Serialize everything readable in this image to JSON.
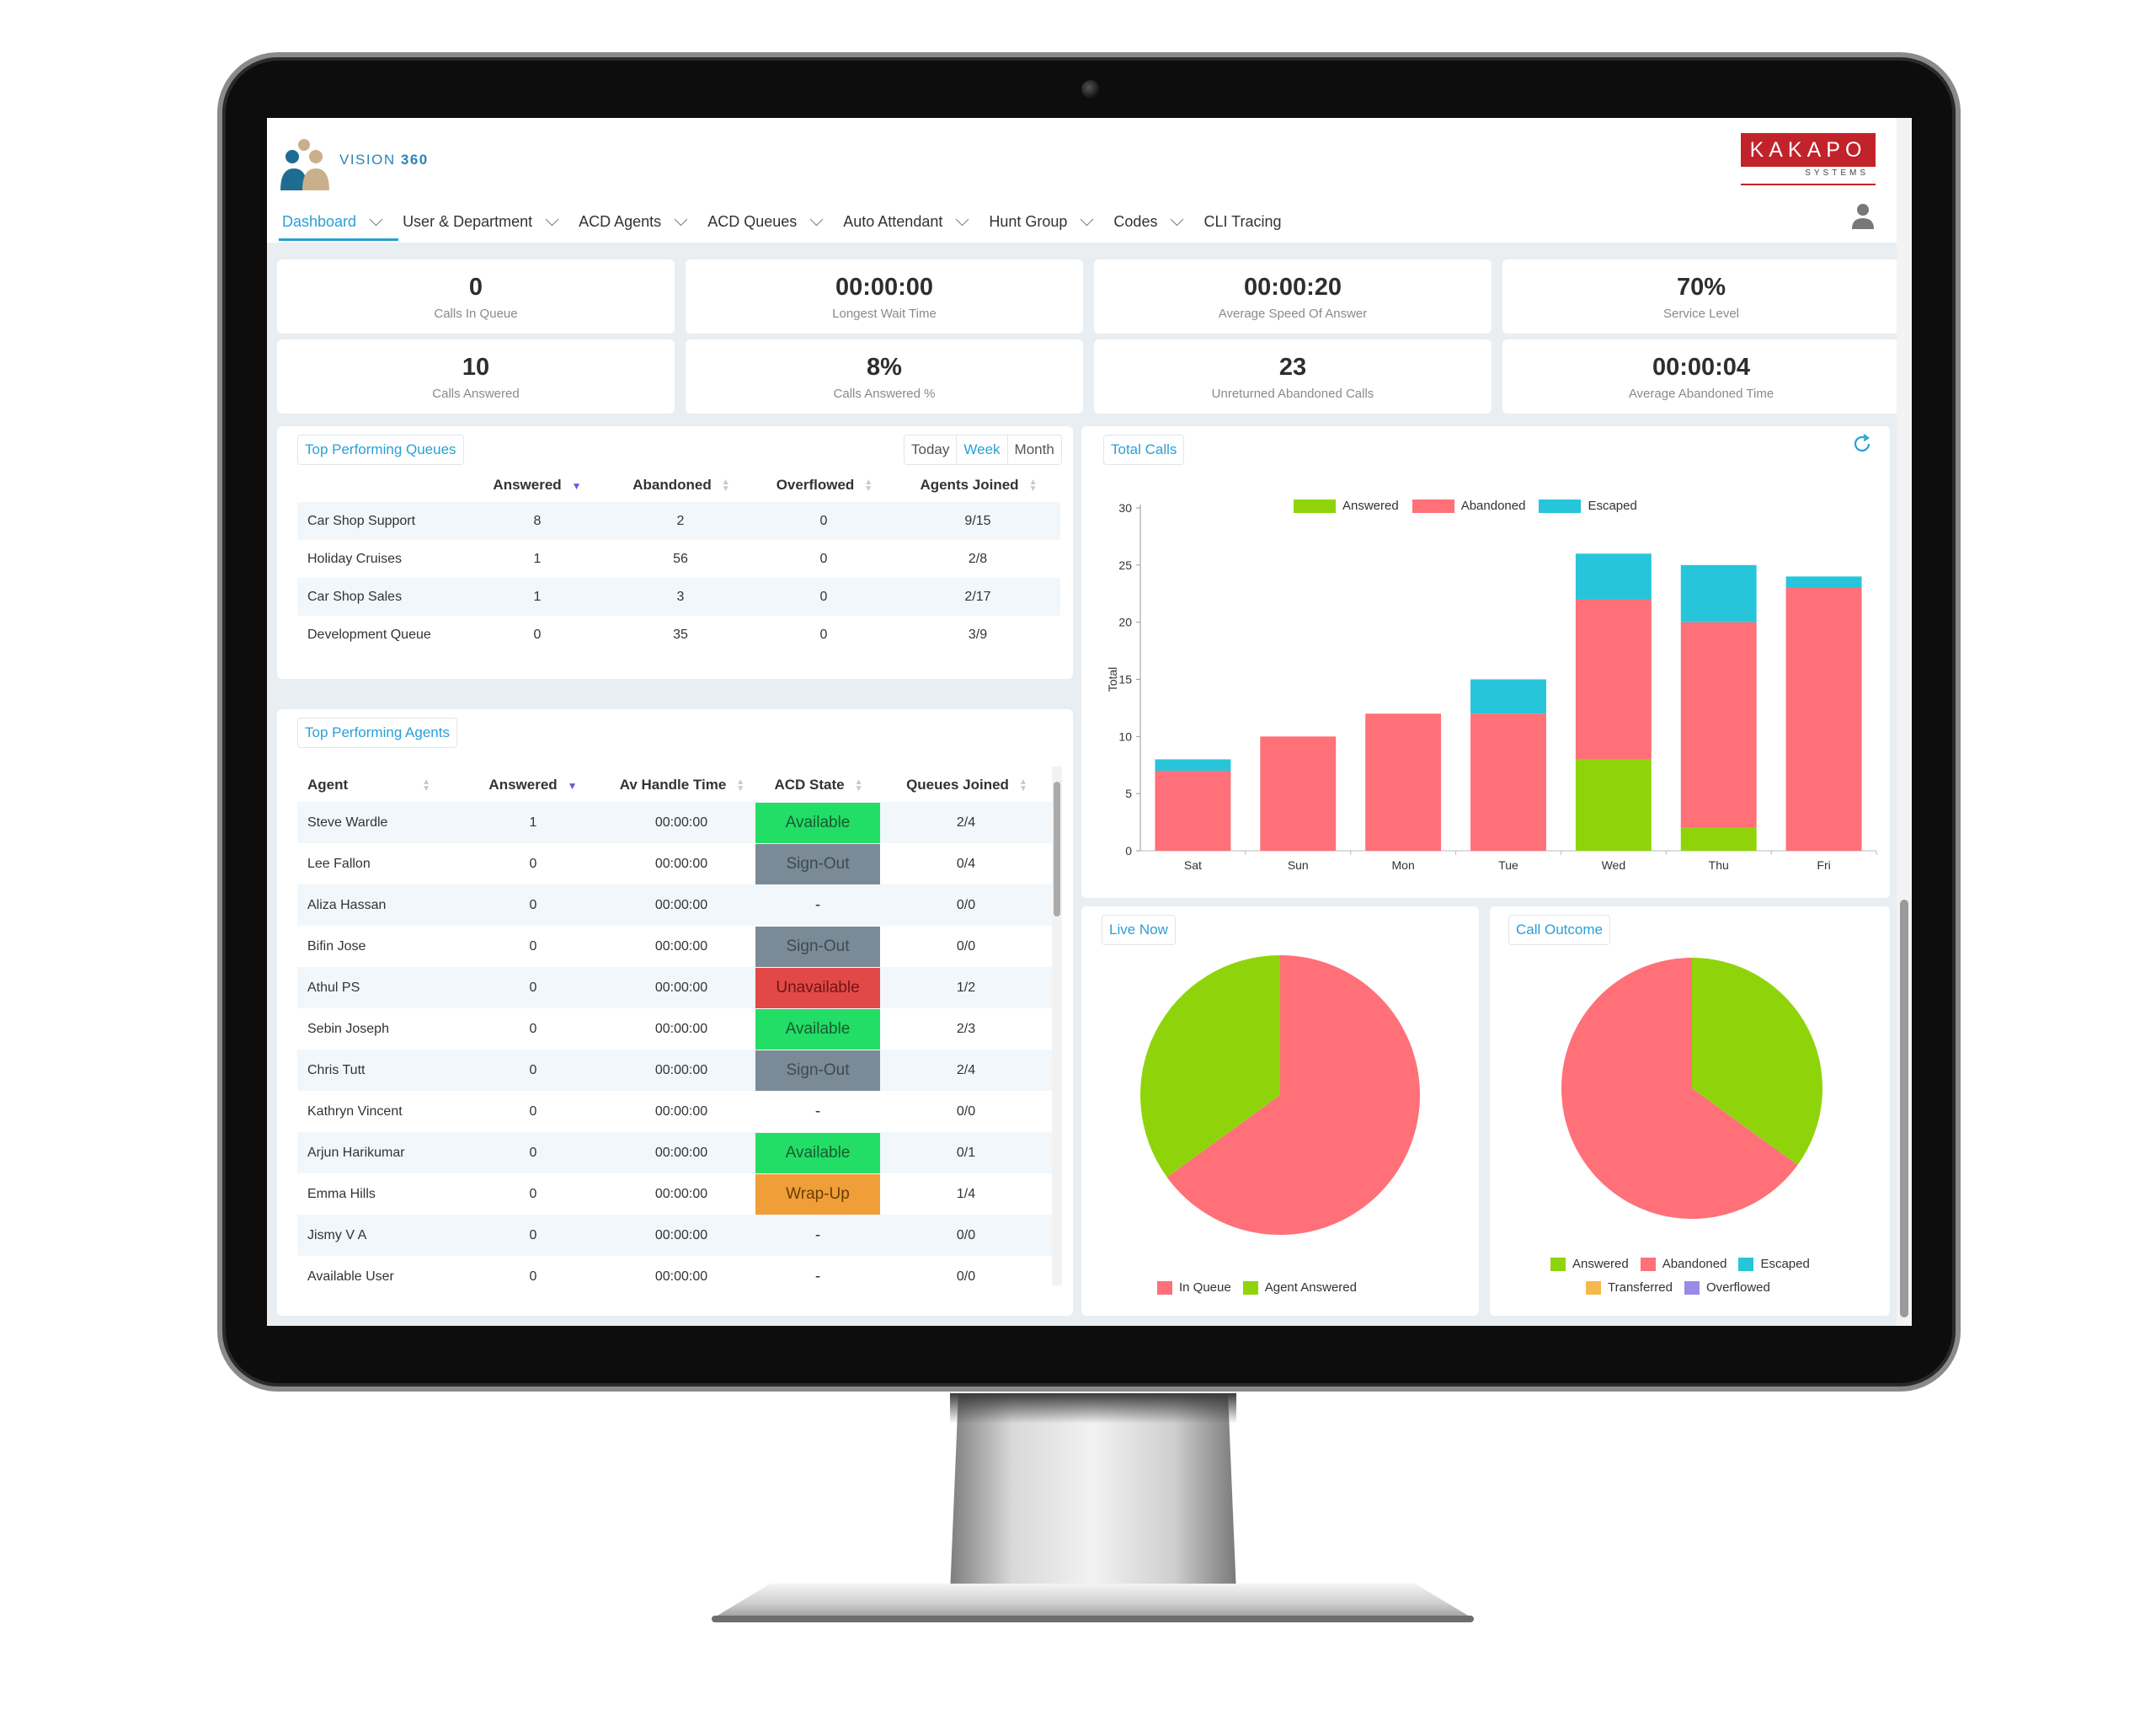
{
  "app": {
    "name": "VISION",
    "name_suffix": "360",
    "brand": "KAKAPO",
    "brand_sub": "SYSTEMS"
  },
  "nav": {
    "items": [
      {
        "label": "Dashboard",
        "has_menu": true,
        "active": true
      },
      {
        "label": "User & Department",
        "has_menu": true
      },
      {
        "label": "ACD Agents",
        "has_menu": true
      },
      {
        "label": "ACD Queues",
        "has_menu": true
      },
      {
        "label": "Auto Attendant",
        "has_menu": true
      },
      {
        "label": "Hunt Group",
        "has_menu": true
      },
      {
        "label": "Codes",
        "has_menu": true
      },
      {
        "label": "CLI Tracing",
        "has_menu": false
      }
    ]
  },
  "kpis": [
    {
      "value": "0",
      "label": "Calls In Queue"
    },
    {
      "value": "00:00:00",
      "label": "Longest Wait Time"
    },
    {
      "value": "00:00:20",
      "label": "Average Speed Of Answer"
    },
    {
      "value": "70%",
      "label": "Service Level"
    },
    {
      "value": "10",
      "label": "Calls Answered"
    },
    {
      "value": "8%",
      "label": "Calls Answered %"
    },
    {
      "value": "23",
      "label": "Unreturned Abandoned Calls"
    },
    {
      "value": "00:00:04",
      "label": "Average Abandoned Time"
    }
  ],
  "queues": {
    "title": "Top Performing Queues",
    "range": {
      "options": [
        "Today",
        "Week",
        "Month"
      ],
      "selected": "Week"
    },
    "columns": [
      "Answered",
      "Abandoned",
      "Overflowed",
      "Agents Joined"
    ],
    "rows": [
      {
        "name": "Car Shop Support",
        "answered": "8",
        "abandoned": "2",
        "overflowed": "0",
        "agents": "9/15"
      },
      {
        "name": "Holiday Cruises",
        "answered": "1",
        "abandoned": "56",
        "overflowed": "0",
        "agents": "2/8"
      },
      {
        "name": "Car Shop Sales",
        "answered": "1",
        "abandoned": "3",
        "overflowed": "0",
        "agents": "2/17"
      },
      {
        "name": "Development Queue",
        "answered": "0",
        "abandoned": "35",
        "overflowed": "0",
        "agents": "3/9"
      }
    ]
  },
  "agents": {
    "title": "Top Performing Agents",
    "columns": [
      "Agent",
      "Answered",
      "Av Handle Time",
      "ACD State",
      "Queues Joined"
    ],
    "rows": [
      {
        "name": "Steve Wardle",
        "answered": "1",
        "time": "00:00:00",
        "state": "Available",
        "state_kind": "available",
        "queues": "2/4"
      },
      {
        "name": "Lee Fallon",
        "answered": "0",
        "time": "00:00:00",
        "state": "Sign-Out",
        "state_kind": "signout",
        "queues": "0/4"
      },
      {
        "name": "Aliza Hassan",
        "answered": "0",
        "time": "00:00:00",
        "state": "-",
        "state_kind": "none",
        "queues": "0/0"
      },
      {
        "name": "Bifin Jose",
        "answered": "0",
        "time": "00:00:00",
        "state": "Sign-Out",
        "state_kind": "signout",
        "queues": "0/0"
      },
      {
        "name": "Athul PS",
        "answered": "0",
        "time": "00:00:00",
        "state": "Unavailable",
        "state_kind": "unavailable",
        "queues": "1/2"
      },
      {
        "name": "Sebin Joseph",
        "answered": "0",
        "time": "00:00:00",
        "state": "Available",
        "state_kind": "available",
        "queues": "2/3"
      },
      {
        "name": "Chris Tutt",
        "answered": "0",
        "time": "00:00:00",
        "state": "Sign-Out",
        "state_kind": "signout",
        "queues": "2/4"
      },
      {
        "name": "Kathryn Vincent",
        "answered": "0",
        "time": "00:00:00",
        "state": "-",
        "state_kind": "none",
        "queues": "0/0"
      },
      {
        "name": "Arjun Harikumar",
        "answered": "0",
        "time": "00:00:00",
        "state": "Available",
        "state_kind": "available",
        "queues": "0/1"
      },
      {
        "name": "Emma Hills",
        "answered": "0",
        "time": "00:00:00",
        "state": "Wrap-Up",
        "state_kind": "wrapup",
        "queues": "1/4"
      },
      {
        "name": "Jismy V A",
        "answered": "0",
        "time": "00:00:00",
        "state": "-",
        "state_kind": "none",
        "queues": "0/0"
      },
      {
        "name": "Available User",
        "answered": "0",
        "time": "00:00:00",
        "state": "-",
        "state_kind": "none",
        "queues": "0/0"
      }
    ]
  },
  "panels": {
    "total_calls": "Total Calls",
    "live_now": "Live Now",
    "call_outcome": "Call Outcome"
  },
  "colors": {
    "answered": "#8fd40a",
    "abandoned": "#ff7079",
    "escaped": "#26c5da",
    "transferred": "#f7b84b",
    "overflowed": "#9b8ae6",
    "accent": "#2a9fd6"
  },
  "chart_data": [
    {
      "type": "bar",
      "stacked": true,
      "title": "Total Calls",
      "ylabel": "Total",
      "xlabel": "",
      "ylim": [
        0,
        30
      ],
      "yticks": [
        0,
        5,
        10,
        15,
        20,
        25,
        30
      ],
      "categories": [
        "Sat",
        "Sun",
        "Mon",
        "Tue",
        "Wed",
        "Thu",
        "Fri"
      ],
      "legend_position": "top-center",
      "series": [
        {
          "name": "Answered",
          "color": "#8fd40a",
          "values": [
            0,
            0,
            0,
            0,
            8,
            2,
            0
          ]
        },
        {
          "name": "Abandoned",
          "color": "#ff7079",
          "values": [
            7,
            10,
            12,
            12,
            14,
            18,
            23
          ]
        },
        {
          "name": "Escaped",
          "color": "#26c5da",
          "values": [
            1,
            0,
            0,
            3,
            4,
            5,
            1
          ]
        }
      ]
    },
    {
      "type": "pie",
      "title": "Live Now",
      "legend_position": "bottom",
      "slices": [
        {
          "name": "In Queue",
          "color": "#ff7079",
          "value": 65
        },
        {
          "name": "Agent Answered",
          "color": "#8fd40a",
          "value": 35
        }
      ]
    },
    {
      "type": "pie",
      "title": "Call Outcome",
      "legend_position": "bottom",
      "slices": [
        {
          "name": "Answered",
          "color": "#8fd40a",
          "value": 35
        },
        {
          "name": "Abandoned",
          "color": "#ff7079",
          "value": 65
        },
        {
          "name": "Escaped",
          "color": "#26c5da",
          "value": 0
        },
        {
          "name": "Transferred",
          "color": "#f7b84b",
          "value": 0
        },
        {
          "name": "Overflowed",
          "color": "#9b8ae6",
          "value": 0
        }
      ]
    }
  ]
}
